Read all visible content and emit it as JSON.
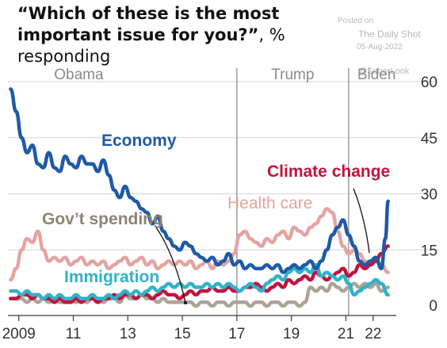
{
  "title_question": "“Which of these is the most important issue for you?”",
  "title_suffix": ", % responding",
  "watermark": {
    "posted_on": "Posted on",
    "source": "The Daily Shot",
    "date": "05-Aug-2022",
    "attribution": "@SoberLook"
  },
  "colors": {
    "Economy": "#1f5aa6",
    "Health care": "#e3a3a1",
    "Climate change": "#c1133f",
    "Gov’t spending": "#aaa397",
    "Immigration": "#2fb3c9",
    "grid": "#d6d6d6",
    "axis": "#3a3a3a",
    "period_text": "#8b8b8b",
    "divider": "#9a9a9a"
  },
  "chart_data": {
    "type": "line",
    "title": "“Which of these is the most important issue for you?”, % responding",
    "xlabel": "",
    "ylabel": "",
    "ylim": [
      0,
      60
    ],
    "xlim": [
      2008.6,
      2022.85
    ],
    "x_ticks": [
      {
        "value": 2009,
        "label": "2009"
      },
      {
        "value": 2011,
        "label": "11"
      },
      {
        "value": 2013,
        "label": "13"
      },
      {
        "value": 2015,
        "label": "15"
      },
      {
        "value": 2017,
        "label": "17"
      },
      {
        "value": 2019,
        "label": "19"
      },
      {
        "value": 2021,
        "label": "21"
      },
      {
        "value": 2022,
        "label": "22"
      }
    ],
    "y_ticks": [
      0,
      15,
      30,
      45,
      60
    ],
    "grid": "horizontal",
    "periods": [
      {
        "label": "Obama",
        "start": 2008.6,
        "end": 2017.0
      },
      {
        "label": "Trump",
        "start": 2017.0,
        "end": 2021.1
      },
      {
        "label": "Biden",
        "start": 2021.1,
        "end": 2022.85
      }
    ],
    "series": [
      {
        "name": "Economy",
        "x": [
          2008.7,
          2008.9,
          2009.1,
          2009.3,
          2009.5,
          2009.7,
          2009.9,
          2010.1,
          2010.3,
          2010.5,
          2010.7,
          2010.9,
          2011.1,
          2011.3,
          2011.5,
          2011.7,
          2011.9,
          2012.1,
          2012.3,
          2012.5,
          2012.7,
          2012.9,
          2013.1,
          2013.3,
          2013.5,
          2013.7,
          2013.9,
          2014.1,
          2014.3,
          2014.5,
          2014.7,
          2014.9,
          2015.1,
          2015.3,
          2015.5,
          2015.7,
          2015.9,
          2016.1,
          2016.3,
          2016.5,
          2016.7,
          2016.9,
          2017.1,
          2017.3,
          2017.5,
          2017.7,
          2017.9,
          2018.1,
          2018.3,
          2018.5,
          2018.7,
          2018.9,
          2019.1,
          2019.3,
          2019.5,
          2019.7,
          2019.9,
          2020.1,
          2020.3,
          2020.5,
          2020.7,
          2020.9,
          2021.1,
          2021.3,
          2021.5,
          2021.7,
          2021.9,
          2022.1,
          2022.3,
          2022.45,
          2022.55
        ],
        "values": [
          58,
          52,
          45,
          41,
          43,
          38,
          37,
          41,
          37,
          36,
          40,
          38,
          37,
          40,
          38,
          38,
          36,
          39,
          35,
          31,
          29,
          32,
          29,
          28,
          26,
          25,
          22,
          24,
          20,
          18,
          16,
          15,
          17,
          16,
          14,
          13,
          12,
          13,
          11,
          12,
          14,
          11,
          12,
          10,
          11,
          10,
          10,
          11,
          10,
          11,
          9,
          10,
          11,
          10,
          11,
          12,
          10,
          12,
          15,
          19,
          21,
          23,
          19,
          16,
          12,
          11,
          12,
          13,
          10,
          18,
          28
        ]
      },
      {
        "name": "Health care",
        "x": [
          2008.7,
          2008.9,
          2009.1,
          2009.3,
          2009.5,
          2009.7,
          2009.9,
          2010.1,
          2010.3,
          2010.5,
          2010.7,
          2010.9,
          2011.1,
          2011.3,
          2011.5,
          2011.7,
          2011.9,
          2012.1,
          2012.3,
          2012.5,
          2012.7,
          2012.9,
          2013.1,
          2013.3,
          2013.5,
          2013.7,
          2013.9,
          2014.1,
          2014.3,
          2014.5,
          2014.7,
          2014.9,
          2015.1,
          2015.3,
          2015.5,
          2015.7,
          2015.9,
          2016.1,
          2016.3,
          2016.5,
          2016.7,
          2016.9,
          2017.1,
          2017.3,
          2017.5,
          2017.7,
          2017.9,
          2018.1,
          2018.3,
          2018.5,
          2018.7,
          2018.9,
          2019.1,
          2019.3,
          2019.5,
          2019.7,
          2019.9,
          2020.1,
          2020.3,
          2020.5,
          2020.7,
          2020.9,
          2021.1,
          2021.3,
          2021.5,
          2021.7,
          2021.9,
          2022.1,
          2022.3,
          2022.55
        ],
        "values": [
          7,
          10,
          15,
          18,
          17,
          20,
          15,
          12,
          13,
          12,
          13,
          11,
          12,
          13,
          11,
          12,
          11,
          12,
          10,
          11,
          12,
          13,
          11,
          12,
          13,
          11,
          12,
          10,
          11,
          12,
          11,
          12,
          11,
          12,
          10,
          11,
          12,
          10,
          12,
          11,
          12,
          14,
          19,
          20,
          18,
          17,
          16,
          18,
          17,
          19,
          20,
          18,
          21,
          20,
          19,
          21,
          22,
          24,
          26,
          25,
          20,
          16,
          14,
          15,
          14,
          12,
          11,
          12,
          11,
          9
        ]
      },
      {
        "name": "Climate change",
        "x": [
          2008.7,
          2008.9,
          2009.1,
          2009.3,
          2009.5,
          2009.7,
          2009.9,
          2010.1,
          2010.3,
          2010.5,
          2010.7,
          2010.9,
          2011.1,
          2011.3,
          2011.5,
          2011.7,
          2011.9,
          2012.1,
          2012.3,
          2012.5,
          2012.7,
          2012.9,
          2013.1,
          2013.3,
          2013.5,
          2013.7,
          2013.9,
          2014.1,
          2014.3,
          2014.5,
          2014.7,
          2014.9,
          2015.1,
          2015.3,
          2015.5,
          2015.7,
          2015.9,
          2016.1,
          2016.3,
          2016.5,
          2016.7,
          2016.9,
          2017.1,
          2017.3,
          2017.5,
          2017.7,
          2017.9,
          2018.1,
          2018.3,
          2018.5,
          2018.7,
          2018.9,
          2019.1,
          2019.3,
          2019.5,
          2019.7,
          2019.9,
          2020.1,
          2020.3,
          2020.5,
          2020.7,
          2020.9,
          2021.1,
          2021.3,
          2021.5,
          2021.7,
          2021.9,
          2022.1,
          2022.3,
          2022.55
        ],
        "values": [
          2,
          2,
          3,
          3,
          2,
          3,
          2,
          2,
          1,
          2,
          1,
          1,
          2,
          1,
          2,
          2,
          1,
          2,
          2,
          3,
          2,
          3,
          3,
          2,
          3,
          3,
          2,
          3,
          4,
          3,
          3,
          2,
          3,
          4,
          3,
          4,
          4,
          5,
          4,
          4,
          5,
          4,
          4,
          5,
          5,
          6,
          5,
          4,
          5,
          6,
          5,
          7,
          6,
          7,
          8,
          7,
          9,
          8,
          7,
          8,
          9,
          10,
          8,
          9,
          11,
          10,
          11,
          12,
          14,
          16
        ]
      },
      {
        "name": "Gov’t spending",
        "x": [
          2008.7,
          2008.9,
          2009.1,
          2009.3,
          2009.5,
          2009.7,
          2009.9,
          2010.1,
          2010.3,
          2010.5,
          2010.7,
          2010.9,
          2011.1,
          2011.3,
          2011.5,
          2011.7,
          2011.9,
          2012.1,
          2012.3,
          2012.5,
          2012.7,
          2012.9,
          2013.1,
          2013.3,
          2013.5,
          2013.7,
          2013.9,
          2014.1,
          2014.3,
          2014.5,
          2014.7,
          2014.9,
          2015.1,
          2015.3,
          2015.5,
          2015.7,
          2015.9,
          2016.1,
          2016.3,
          2016.5,
          2016.7,
          2016.9,
          2017.1,
          2017.3,
          2017.5,
          2017.7,
          2017.9,
          2018.1,
          2018.3,
          2018.5,
          2018.7,
          2018.9,
          2019.1,
          2019.3,
          2019.5,
          2019.7,
          2019.9,
          2020.1,
          2020.3,
          2020.5,
          2020.7,
          2020.9,
          2021.1,
          2021.3,
          2021.5,
          2021.7,
          2021.9,
          2022.1,
          2022.3,
          2022.55
        ],
        "values": [
          2,
          2,
          2,
          1,
          2,
          1,
          2,
          1,
          2,
          1,
          1,
          2,
          1,
          2,
          1,
          2,
          2,
          1,
          2,
          2,
          1,
          3,
          2,
          2,
          3,
          2,
          2,
          1,
          2,
          1,
          1,
          1,
          1,
          1,
          0,
          1,
          1,
          0,
          1,
          1,
          0,
          1,
          1,
          1,
          0,
          1,
          1,
          0,
          1,
          1,
          0,
          1,
          1,
          0,
          1,
          5,
          4,
          5,
          4,
          6,
          5,
          4,
          5,
          6,
          5,
          6,
          5,
          6,
          4,
          5
        ]
      },
      {
        "name": "Immigration",
        "x": [
          2008.7,
          2008.9,
          2009.1,
          2009.3,
          2009.5,
          2009.7,
          2009.9,
          2010.1,
          2010.3,
          2010.5,
          2010.7,
          2010.9,
          2011.1,
          2011.3,
          2011.5,
          2011.7,
          2011.9,
          2012.1,
          2012.3,
          2012.5,
          2012.7,
          2012.9,
          2013.1,
          2013.3,
          2013.5,
          2013.7,
          2013.9,
          2014.1,
          2014.3,
          2014.5,
          2014.7,
          2014.9,
          2015.1,
          2015.3,
          2015.5,
          2015.7,
          2015.9,
          2016.1,
          2016.3,
          2016.5,
          2016.7,
          2016.9,
          2017.1,
          2017.3,
          2017.5,
          2017.7,
          2017.9,
          2018.1,
          2018.3,
          2018.5,
          2018.7,
          2018.9,
          2019.1,
          2019.3,
          2019.5,
          2019.7,
          2019.9,
          2020.1,
          2020.3,
          2020.5,
          2020.7,
          2020.9,
          2021.1,
          2021.3,
          2021.5,
          2021.7,
          2021.9,
          2022.1,
          2022.3,
          2022.55
        ],
        "values": [
          4,
          4,
          3,
          4,
          3,
          3,
          2,
          3,
          2,
          3,
          2,
          2,
          3,
          2,
          2,
          3,
          2,
          2,
          3,
          2,
          3,
          4,
          3,
          4,
          3,
          4,
          5,
          4,
          5,
          6,
          5,
          6,
          5,
          6,
          5,
          5,
          6,
          5,
          6,
          5,
          6,
          5,
          4,
          5,
          6,
          5,
          4,
          6,
          7,
          8,
          7,
          9,
          10,
          9,
          10,
          9,
          11,
          8,
          9,
          8,
          7,
          8,
          6,
          3,
          4,
          5,
          6,
          7,
          6,
          3
        ]
      }
    ],
    "labels": [
      {
        "series": "Economy",
        "text": "Economy"
      },
      {
        "series": "Health care",
        "text": "Health care"
      },
      {
        "series": "Climate change",
        "text": "Climate change"
      },
      {
        "series": "Gov’t spending",
        "text": "Gov’t spending"
      },
      {
        "series": "Immigration",
        "text": "Immigration"
      }
    ]
  }
}
